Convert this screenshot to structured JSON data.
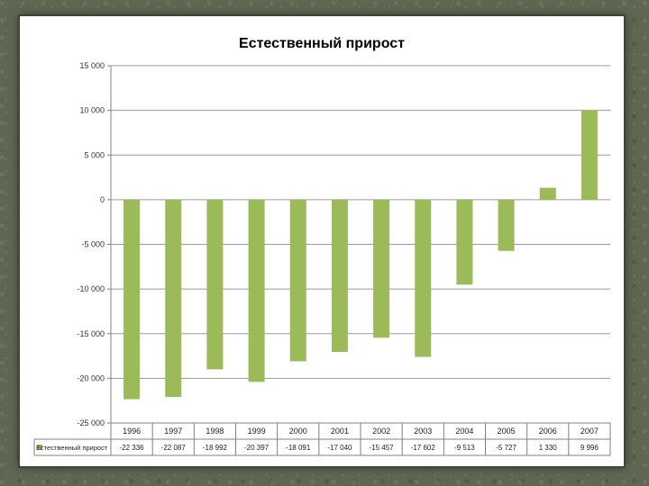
{
  "chart_data": {
    "type": "bar",
    "title": "Естественный прирост",
    "categories": [
      "1996",
      "1997",
      "1998",
      "1999",
      "2000",
      "2001",
      "2002",
      "2003",
      "2004",
      "2005",
      "2006",
      "2007"
    ],
    "series": [
      {
        "name": "Естественный прирост",
        "values": [
          -22336,
          -22087,
          -18992,
          -20397,
          -18091,
          -17040,
          -15457,
          -17602,
          -9513,
          -5727,
          1330,
          9996
        ],
        "value_labels": [
          "-22 336",
          "-22 087",
          "-18 992",
          "-20 397",
          "-18 091",
          "-17 040",
          "-15 457",
          "-17 602",
          "-9 513",
          "-5 727",
          "1 330",
          "9 996"
        ],
        "color": "#9bbb59"
      }
    ],
    "ylim": [
      -25000,
      15000
    ],
    "yticks": [
      15000,
      10000,
      5000,
      0,
      -5000,
      -10000,
      -15000,
      -20000,
      -25000
    ],
    "ytick_labels": [
      "15 000",
      "10 000",
      "5 000",
      "0",
      "-5 000",
      "-10 000",
      "-15 000",
      "-20 000",
      "-25 000"
    ],
    "grid": true,
    "legend": "data-table",
    "xlabel": "",
    "ylabel": ""
  }
}
